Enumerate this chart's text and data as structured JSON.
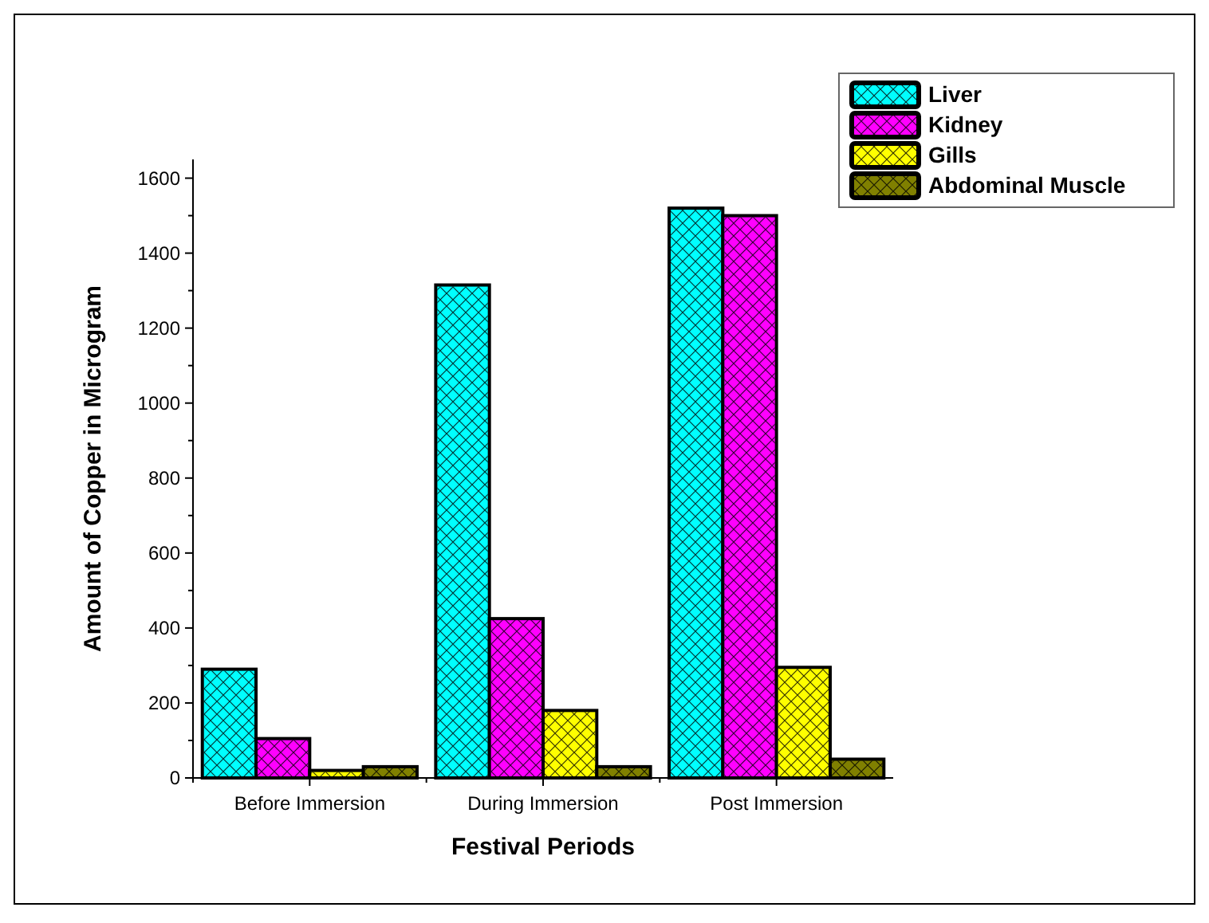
{
  "chart_data": {
    "type": "bar",
    "xlabel": "Festival Periods",
    "ylabel": "Amount of Copper in Microgram",
    "categories": [
      "Before Immersion",
      "During Immersion",
      "Post Immersion"
    ],
    "series": [
      {
        "name": "Liver",
        "color": "#00ffff",
        "values": [
          290,
          1315,
          1520
        ]
      },
      {
        "name": "Kidney",
        "color": "#ff00ff",
        "values": [
          105,
          425,
          1500
        ]
      },
      {
        "name": "Gills",
        "color": "#ffff00",
        "values": [
          20,
          180,
          295
        ]
      },
      {
        "name": "Abdominal Muscle",
        "color": "#808000",
        "values": [
          30,
          30,
          50
        ]
      }
    ],
    "ylim": [
      0,
      1650
    ],
    "yticks": [
      0,
      200,
      400,
      600,
      800,
      1000,
      1200,
      1400,
      1600
    ],
    "grid": false,
    "legend": "top right"
  }
}
